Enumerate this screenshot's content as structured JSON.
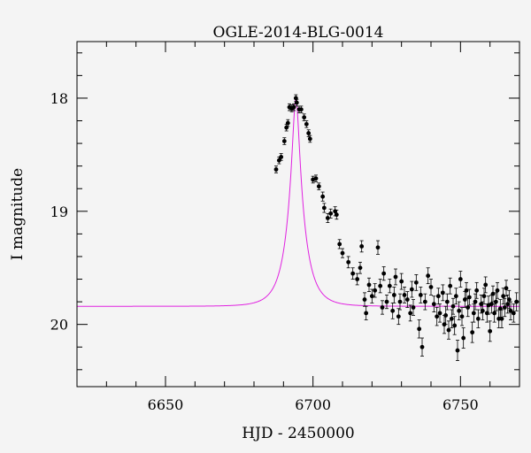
{
  "chart_data": {
    "type": "scatter",
    "title": "OGLE-2014-BLG-0014",
    "xlabel": "HJD - 2450000",
    "ylabel": "I magnitude",
    "xlim": [
      6620,
      6770
    ],
    "ylim": [
      20.55,
      17.5
    ],
    "y_inverted": true,
    "x_ticks_major": [
      6650,
      6700,
      6750
    ],
    "y_ticks_major": [
      18,
      19,
      20
    ],
    "grid": false,
    "legend": "none",
    "colors": {
      "points": "#000000",
      "model": "#e020e0",
      "background": "#f4f4f4"
    },
    "model_curve": {
      "name": "",
      "baseline_mag": 19.84,
      "peak_mag": 18.0,
      "t0": 6694.2,
      "tE": 5.6
    },
    "series": [
      {
        "name": "",
        "points": [
          [
            6687.5,
            18.63,
            0.03
          ],
          [
            6688.5,
            18.55,
            0.03
          ],
          [
            6689.2,
            18.52,
            0.03
          ],
          [
            6690.3,
            18.38,
            0.03
          ],
          [
            6691.0,
            18.26,
            0.03
          ],
          [
            6691.5,
            18.22,
            0.03
          ],
          [
            6692.0,
            18.08,
            0.03
          ],
          [
            6692.8,
            18.09,
            0.03
          ],
          [
            6693.5,
            18.08,
            0.03
          ],
          [
            6694.2,
            18.0,
            0.03
          ],
          [
            6694.5,
            18.04,
            0.03
          ],
          [
            6695.3,
            18.1,
            0.03
          ],
          [
            6696.0,
            18.1,
            0.03
          ],
          [
            6697.0,
            18.17,
            0.03
          ],
          [
            6697.8,
            18.23,
            0.03
          ],
          [
            6698.5,
            18.31,
            0.03
          ],
          [
            6699.0,
            18.36,
            0.03
          ],
          [
            6700.0,
            18.72,
            0.03
          ],
          [
            6701.0,
            18.71,
            0.03
          ],
          [
            6702.0,
            18.78,
            0.03
          ],
          [
            6703.3,
            18.87,
            0.04
          ],
          [
            6703.8,
            18.97,
            0.04
          ],
          [
            6705.0,
            19.06,
            0.04
          ],
          [
            6706.0,
            19.02,
            0.04
          ],
          [
            6707.5,
            19.0,
            0.04
          ],
          [
            6708.0,
            19.03,
            0.04
          ],
          [
            6709.0,
            19.29,
            0.04
          ],
          [
            6710.0,
            19.37,
            0.04
          ],
          [
            6712.0,
            19.45,
            0.05
          ],
          [
            6713.5,
            19.55,
            0.05
          ],
          [
            6715.0,
            19.6,
            0.05
          ],
          [
            6716.0,
            19.5,
            0.05
          ],
          [
            6716.5,
            19.31,
            0.05
          ],
          [
            6717.5,
            19.78,
            0.06
          ],
          [
            6718.0,
            19.9,
            0.06
          ],
          [
            6719.0,
            19.65,
            0.06
          ],
          [
            6720.0,
            19.75,
            0.06
          ],
          [
            6721.0,
            19.7,
            0.06
          ],
          [
            6722.0,
            19.32,
            0.06
          ],
          [
            6722.8,
            19.66,
            0.06
          ],
          [
            6723.5,
            19.85,
            0.06
          ],
          [
            6724.0,
            19.55,
            0.06
          ],
          [
            6725.0,
            19.8,
            0.06
          ],
          [
            6726.0,
            19.66,
            0.06
          ],
          [
            6727.0,
            19.88,
            0.07
          ],
          [
            6727.5,
            19.74,
            0.07
          ],
          [
            6728.0,
            19.58,
            0.07
          ],
          [
            6729.0,
            19.93,
            0.07
          ],
          [
            6729.5,
            19.8,
            0.07
          ],
          [
            6730.0,
            19.62,
            0.07
          ],
          [
            6731.0,
            19.74,
            0.07
          ],
          [
            6732.0,
            19.78,
            0.07
          ],
          [
            6733.0,
            19.9,
            0.07
          ],
          [
            6733.5,
            19.69,
            0.07
          ],
          [
            6734.0,
            19.85,
            0.07
          ],
          [
            6735.0,
            19.63,
            0.07
          ],
          [
            6736.0,
            20.04,
            0.08
          ],
          [
            6736.5,
            19.74,
            0.07
          ],
          [
            6737.0,
            20.2,
            0.08
          ],
          [
            6738.0,
            19.8,
            0.07
          ],
          [
            6739.0,
            19.57,
            0.07
          ],
          [
            6740.0,
            19.67,
            0.07
          ],
          [
            6741.0,
            19.82,
            0.07
          ],
          [
            6742.0,
            19.93,
            0.08
          ],
          [
            6742.5,
            19.75,
            0.07
          ],
          [
            6743.0,
            19.9,
            0.08
          ],
          [
            6744.0,
            19.72,
            0.07
          ],
          [
            6744.5,
            20.0,
            0.08
          ],
          [
            6745.0,
            19.92,
            0.08
          ],
          [
            6745.5,
            19.8,
            0.07
          ],
          [
            6746.0,
            20.05,
            0.08
          ],
          [
            6746.5,
            19.66,
            0.07
          ],
          [
            6747.0,
            19.95,
            0.08
          ],
          [
            6747.5,
            19.84,
            0.07
          ],
          [
            6748.0,
            20.01,
            0.08
          ],
          [
            6748.5,
            19.75,
            0.07
          ],
          [
            6749.0,
            20.23,
            0.09
          ],
          [
            6749.5,
            19.88,
            0.08
          ],
          [
            6750.0,
            19.6,
            0.07
          ],
          [
            6750.5,
            19.93,
            0.08
          ],
          [
            6751.0,
            20.12,
            0.09
          ],
          [
            6751.5,
            19.78,
            0.07
          ],
          [
            6752.0,
            19.7,
            0.07
          ],
          [
            6752.5,
            19.85,
            0.08
          ],
          [
            6753.0,
            19.76,
            0.07
          ],
          [
            6754.0,
            20.07,
            0.09
          ],
          [
            6754.5,
            19.9,
            0.08
          ],
          [
            6755.0,
            19.8,
            0.07
          ],
          [
            6755.5,
            19.7,
            0.07
          ],
          [
            6756.0,
            19.95,
            0.08
          ],
          [
            6757.0,
            19.82,
            0.08
          ],
          [
            6757.5,
            19.88,
            0.08
          ],
          [
            6758.0,
            19.75,
            0.07
          ],
          [
            6758.5,
            19.65,
            0.07
          ],
          [
            6759.0,
            19.9,
            0.08
          ],
          [
            6759.5,
            19.83,
            0.08
          ],
          [
            6760.0,
            20.06,
            0.09
          ],
          [
            6760.5,
            19.82,
            0.08
          ],
          [
            6761.0,
            19.73,
            0.07
          ],
          [
            6761.5,
            19.9,
            0.08
          ],
          [
            6762.0,
            19.8,
            0.08
          ],
          [
            6762.5,
            19.7,
            0.07
          ],
          [
            6763.0,
            19.95,
            0.08
          ],
          [
            6763.5,
            19.86,
            0.08
          ],
          [
            6764.0,
            19.95,
            0.08
          ],
          [
            6764.5,
            19.75,
            0.07
          ],
          [
            6765.0,
            19.85,
            0.08
          ],
          [
            6765.5,
            19.68,
            0.07
          ],
          [
            6766.0,
            19.82,
            0.08
          ],
          [
            6766.5,
            19.78,
            0.08
          ],
          [
            6767.0,
            19.88,
            0.08
          ],
          [
            6768.0,
            19.9,
            0.08
          ],
          [
            6769.0,
            19.8,
            0.08
          ]
        ]
      }
    ]
  }
}
